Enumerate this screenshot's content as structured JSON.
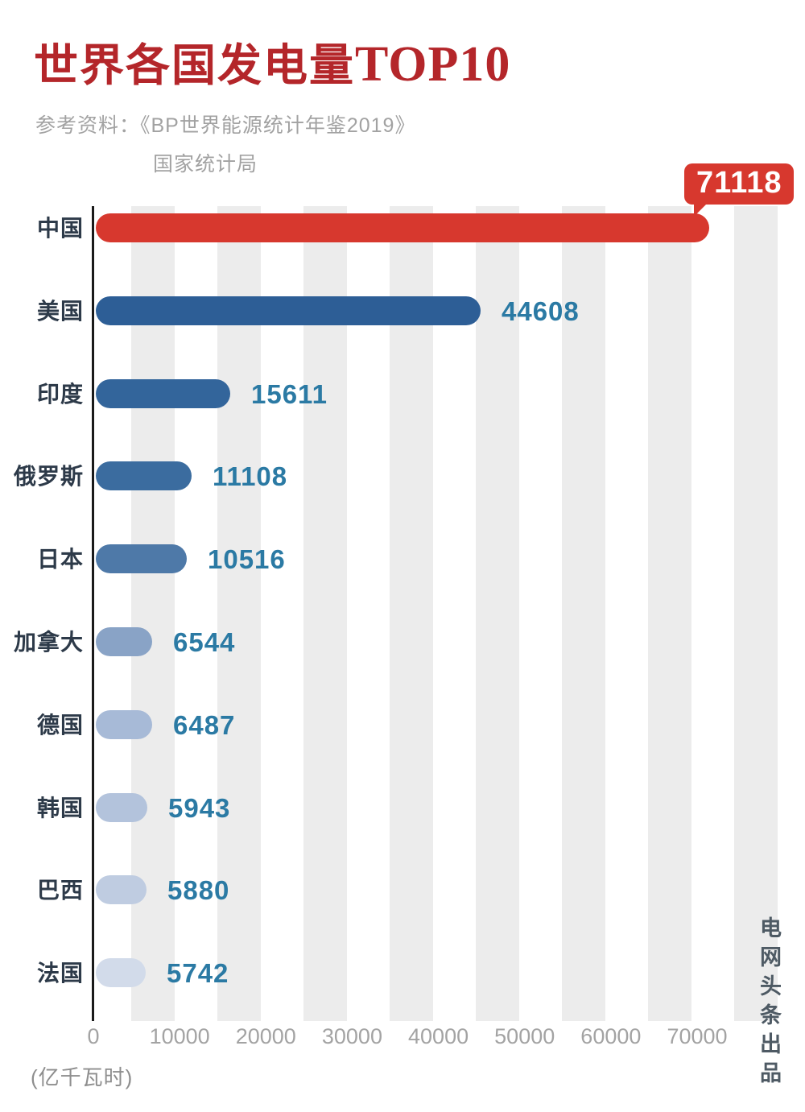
{
  "title": {
    "main": "世界各国发电量",
    "highlight": "TOP10"
  },
  "source": {
    "line1": "参考资料：《BP世界能源统计年鉴2019》",
    "line2": "国家统计局"
  },
  "unit_label": "(亿千瓦时)",
  "watermark": "电网头条出品",
  "colors": {
    "title_red": "#b4262a",
    "callout_red": "#d7382e",
    "value_text": "#2b7aa4",
    "category_text": "#2d3a49",
    "stripe": "#ececec"
  },
  "chart_data": {
    "type": "bar",
    "orientation": "horizontal",
    "title": "世界各国发电量TOP10",
    "xlabel": "(亿千瓦时)",
    "categories": [
      "中国",
      "美国",
      "印度",
      "俄罗斯",
      "日本",
      "加拿大",
      "德国",
      "韩国",
      "巴西",
      "法国"
    ],
    "values": [
      71118,
      44608,
      15611,
      11108,
      10516,
      6544,
      6487,
      5943,
      5880,
      5742
    ],
    "bar_colors": [
      "#d7382e",
      "#2d5e96",
      "#33659b",
      "#3b6c9f",
      "#4e79a8",
      "#89a3c6",
      "#a7bad7",
      "#b3c3dc",
      "#bfcce1",
      "#d2dbea"
    ],
    "x_ticks": [
      0,
      10000,
      20000,
      30000,
      40000,
      50000,
      60000,
      70000
    ],
    "xlim": [
      0,
      74000
    ],
    "grid": "vertical-stripes",
    "legend": "none",
    "callout": {
      "category": "中国",
      "value": "71118"
    }
  }
}
